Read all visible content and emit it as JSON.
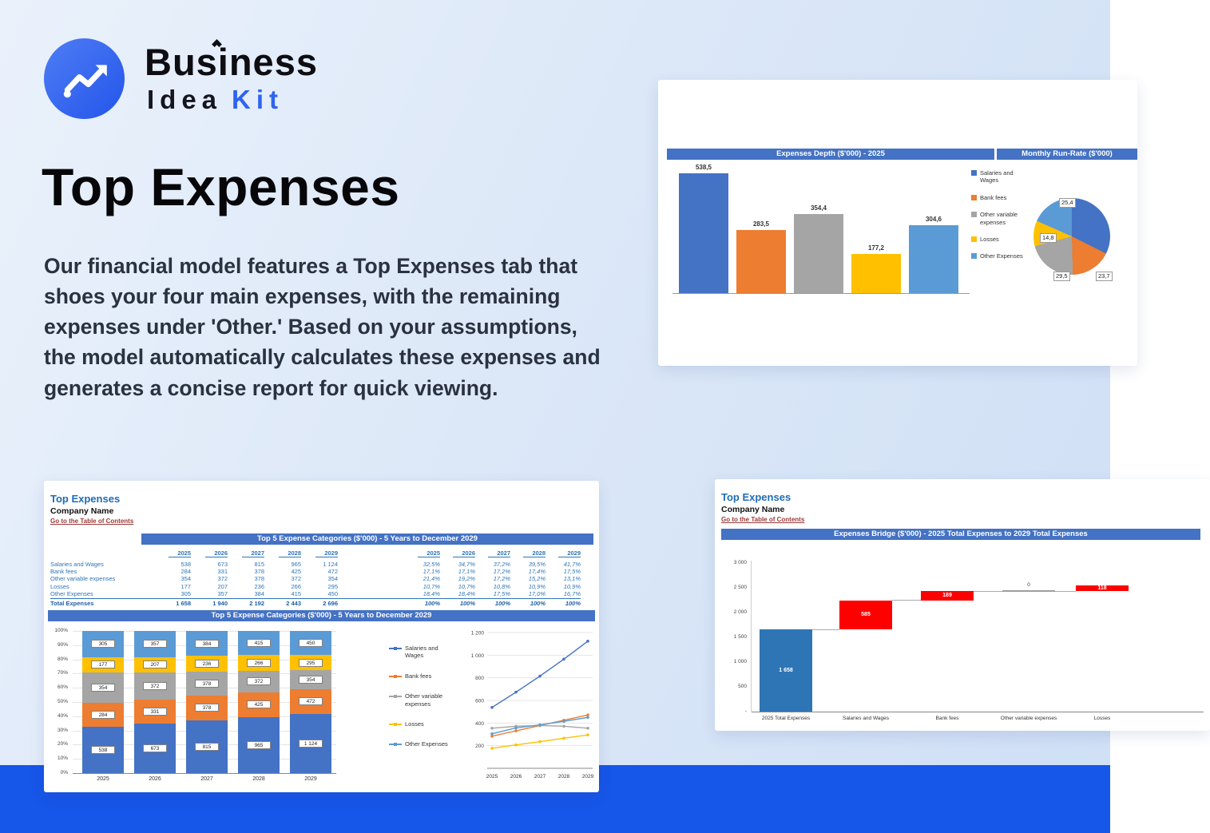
{
  "colors": {
    "band": "#1656e8",
    "accent": "#2f63f0",
    "header_bar": "#4472c4",
    "sheet_title": "#1f6cb5",
    "link": "#9c3a38",
    "palette": [
      "#4472c4",
      "#ed7d31",
      "#a5a5a5",
      "#ffc000",
      "#5b9bd5"
    ],
    "bridge_base": "#2e75b6",
    "bridge_delta": "#ff0000"
  },
  "logo": {
    "word_top": "Business",
    "word_bottom_dark": "Idea",
    "word_bottom_accent": "Kit"
  },
  "hero": {
    "title": "Top Expenses",
    "paragraph": "Our financial model features a Top Expenses tab that shoes your four main expenses, with the remaining expenses under 'Other.' Based on your assumptions, the model automatically calculates these expenses and generates a concise report for quick viewing."
  },
  "series_names": [
    "Salaries and Wages",
    "Bank fees",
    "Other variable expenses",
    "Losses",
    "Other Expenses"
  ],
  "depth_card": {
    "header_left": "Expenses Depth ($'000) - 2025",
    "header_right": "Monthly Run-Rate ($'000)"
  },
  "sheet1": {
    "title": "Top Expenses",
    "company": "Company Name",
    "link": "Go to the Table of Contents",
    "table_header": "Top 5 Expense Categories ($'000) - 5 Years to December 2029",
    "chart_header": "Top 5 Expense Categories ($'000) - 5 Years to December 2029",
    "years": [
      "2025",
      "2026",
      "2027",
      "2028",
      "2029"
    ],
    "rows": [
      {
        "label": "Salaries and Wages",
        "values": [
          "538",
          "673",
          "815",
          "965",
          "1 124"
        ],
        "pcts": [
          "32,5%",
          "34,7%",
          "37,2%",
          "39,5%",
          "41,7%"
        ]
      },
      {
        "label": "Bank fees",
        "values": [
          "284",
          "331",
          "378",
          "425",
          "472"
        ],
        "pcts": [
          "17,1%",
          "17,1%",
          "17,2%",
          "17,4%",
          "17,5%"
        ]
      },
      {
        "label": "Other variable expenses",
        "values": [
          "354",
          "372",
          "378",
          "372",
          "354"
        ],
        "pcts": [
          "21,4%",
          "19,2%",
          "17,2%",
          "15,2%",
          "13,1%"
        ]
      },
      {
        "label": "Losses",
        "values": [
          "177",
          "207",
          "236",
          "266",
          "295"
        ],
        "pcts": [
          "10,7%",
          "10,7%",
          "10,8%",
          "10,9%",
          "10,9%"
        ]
      },
      {
        "label": "Other Expenses",
        "values": [
          "305",
          "357",
          "384",
          "415",
          "450"
        ],
        "pcts": [
          "18,4%",
          "18,4%",
          "17,5%",
          "17,0%",
          "16,7%"
        ]
      }
    ],
    "total": {
      "label": "Total Expenses",
      "values": [
        "1 658",
        "1 940",
        "2 192",
        "2 443",
        "2 696"
      ],
      "pcts": [
        "100%",
        "100%",
        "100%",
        "100%",
        "100%"
      ]
    }
  },
  "sheet2": {
    "title": "Top Expenses",
    "company": "Company Name",
    "link": "Go to the Table of Contents",
    "chart_header": "Expenses Bridge ($'000) - 2025 Total Expenses to 2029 Total Expenses"
  },
  "chart_data": [
    {
      "id": "expenses_depth",
      "type": "bar",
      "title": "Expenses Depth ($'000) - 2025",
      "categories": [
        "Salaries and Wages",
        "Bank fees",
        "Other variable expenses",
        "Losses",
        "Other Expenses"
      ],
      "values": [
        538.5,
        283.5,
        354.4,
        177.2,
        304.6
      ],
      "labels": [
        "538,5",
        "283,5",
        "354,4",
        "177,2",
        "304,6"
      ],
      "ylim": [
        0,
        600
      ],
      "legend_position": "right",
      "grid": false
    },
    {
      "id": "monthly_run_rate",
      "type": "pie",
      "title": "Monthly Run-Rate ($'000)",
      "categories": [
        "Salaries and Wages",
        "Bank fees",
        "Other variable expenses",
        "Losses",
        "Other Expenses"
      ],
      "values": [
        44.8,
        23.7,
        29.5,
        14.8,
        25.4
      ],
      "visible_labels": [
        "25,4",
        "14,8",
        "29,5",
        "23,7"
      ]
    },
    {
      "id": "top5_stacked",
      "type": "bar",
      "stacked": true,
      "title": "Top 5 Expense Categories ($'000) - 5 Years to December 2029",
      "categories": [
        "2025",
        "2026",
        "2027",
        "2028",
        "2029"
      ],
      "ylim": [
        0,
        100
      ],
      "unit": "%",
      "grid": true,
      "series": [
        {
          "name": "Salaries and Wages",
          "pct": [
            32.5,
            34.7,
            37.2,
            39.5,
            41.7
          ],
          "labels": [
            "538",
            "673",
            "815",
            "965",
            "1 124"
          ]
        },
        {
          "name": "Bank fees",
          "pct": [
            17.1,
            17.1,
            17.2,
            17.4,
            17.5
          ],
          "labels": [
            "284",
            "331",
            "378",
            "425",
            "472"
          ]
        },
        {
          "name": "Other variable expenses",
          "pct": [
            21.4,
            19.2,
            17.2,
            15.2,
            13.1
          ],
          "labels": [
            "354",
            "372",
            "378",
            "372",
            "354"
          ]
        },
        {
          "name": "Losses",
          "pct": [
            10.7,
            10.7,
            10.8,
            10.9,
            10.9
          ],
          "labels": [
            "177",
            "207",
            "236",
            "266",
            "295"
          ]
        },
        {
          "name": "Other Expenses",
          "pct": [
            18.4,
            18.4,
            17.5,
            17.0,
            16.7
          ],
          "labels": [
            "305",
            "357",
            "384",
            "415",
            "450"
          ]
        }
      ]
    },
    {
      "id": "top5_lines",
      "type": "line",
      "categories": [
        "2025",
        "2026",
        "2027",
        "2028",
        "2029"
      ],
      "ylim": [
        0,
        1200
      ],
      "grid": true,
      "yticks": [
        {
          "value": 1200,
          "label": "1 200"
        },
        {
          "value": 1000,
          "label": "1 000"
        },
        {
          "value": 800,
          "label": "800"
        },
        {
          "value": 600,
          "label": "600"
        },
        {
          "value": 400,
          "label": "400"
        },
        {
          "value": 200,
          "label": "200"
        }
      ],
      "series": [
        {
          "name": "Salaries and Wages",
          "values": [
            538,
            673,
            815,
            965,
            1124
          ]
        },
        {
          "name": "Bank fees",
          "values": [
            284,
            331,
            378,
            425,
            472
          ]
        },
        {
          "name": "Other variable expenses",
          "values": [
            354,
            372,
            378,
            372,
            354
          ]
        },
        {
          "name": "Losses",
          "values": [
            177,
            207,
            236,
            266,
            295
          ]
        },
        {
          "name": "Other Expenses",
          "values": [
            305,
            357,
            384,
            415,
            450
          ]
        }
      ]
    },
    {
      "id": "expenses_bridge",
      "type": "bar",
      "subtype": "waterfall",
      "title": "Expenses Bridge ($'000) - 2025 Total Expenses to 2029 Total Expenses",
      "ylim": [
        0,
        3000
      ],
      "yticks": [
        {
          "value": 3000,
          "label": "3 000"
        },
        {
          "value": 2500,
          "label": "2 500"
        },
        {
          "value": 2000,
          "label": "2 000"
        },
        {
          "value": 1500,
          "label": "1 500"
        },
        {
          "value": 1000,
          "label": "1 000"
        },
        {
          "value": 500,
          "label": "500"
        },
        {
          "value": 0,
          "label": "-"
        }
      ],
      "steps": [
        {
          "label": "2025 Total Expenses",
          "value": 1658,
          "display": "1 658",
          "kind": "base"
        },
        {
          "label": "Salaries and Wages",
          "value": 585,
          "display": "585",
          "kind": "increase"
        },
        {
          "label": "Bank fees",
          "value": 189,
          "display": "189",
          "kind": "increase"
        },
        {
          "label": "Other variable expenses",
          "value": 0,
          "display": "0",
          "kind": "increase"
        },
        {
          "label": "Losses",
          "value": 118,
          "display": "118",
          "kind": "increase"
        }
      ]
    }
  ]
}
